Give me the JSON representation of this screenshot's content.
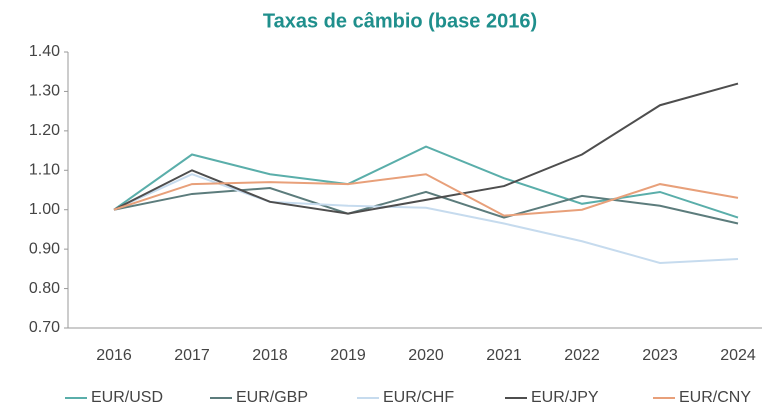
{
  "chart_data": {
    "type": "line",
    "title": "Taxas de câmbio (base 2016)",
    "categories": [
      "2016",
      "2017",
      "2018",
      "2019",
      "2020",
      "2021",
      "2022",
      "2023",
      "2024"
    ],
    "series": [
      {
        "name": "EUR/USD",
        "color": "#5aaeaa",
        "values": [
          1.0,
          1.14,
          1.09,
          1.065,
          1.16,
          1.08,
          1.015,
          1.045,
          0.98
        ]
      },
      {
        "name": "EUR/GBP",
        "color": "#5c7c7c",
        "values": [
          1.0,
          1.04,
          1.055,
          0.99,
          1.045,
          0.98,
          1.035,
          1.01,
          0.965
        ]
      },
      {
        "name": "EUR/CHF",
        "color": "#c6dbee",
        "values": [
          1.0,
          1.09,
          1.02,
          1.01,
          1.005,
          0.965,
          0.92,
          0.865,
          0.875
        ]
      },
      {
        "name": "EUR/JPY",
        "color": "#4e4e4e",
        "values": [
          1.0,
          1.1,
          1.02,
          0.99,
          1.025,
          1.06,
          1.14,
          1.265,
          1.32
        ]
      },
      {
        "name": "EUR/CNY",
        "color": "#e8a07a",
        "values": [
          1.0,
          1.065,
          1.07,
          1.065,
          1.09,
          0.985,
          1.0,
          1.065,
          1.03
        ]
      }
    ],
    "ylim": [
      0.7,
      1.4
    ],
    "yticks": [
      {
        "value": 0.7,
        "label": "0.70"
      },
      {
        "value": 0.8,
        "label": "0.80"
      },
      {
        "value": 0.9,
        "label": "0.90"
      },
      {
        "value": 1.0,
        "label": "1.00"
      },
      {
        "value": 1.1,
        "label": "1.10"
      },
      {
        "value": 1.2,
        "label": "1.20"
      },
      {
        "value": 1.3,
        "label": "1.30"
      },
      {
        "value": 1.4,
        "label": "1.40"
      }
    ],
    "grid": false,
    "legend": "bottom"
  }
}
